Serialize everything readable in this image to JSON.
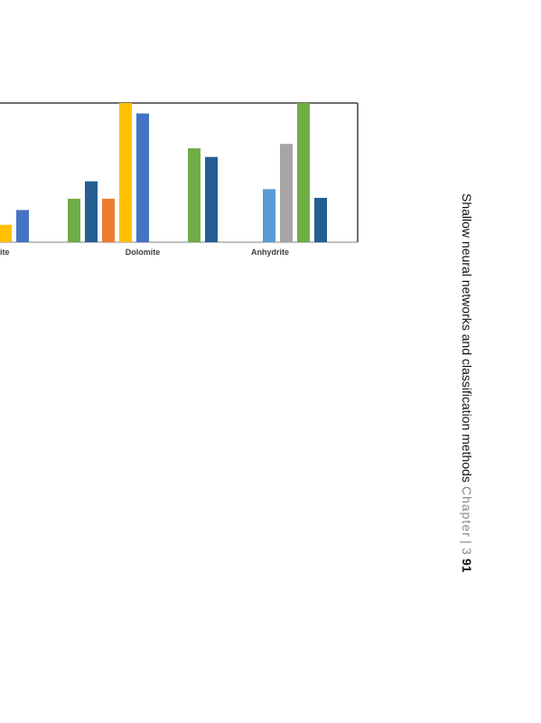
{
  "chart_data": {
    "type": "bar",
    "title": "",
    "xlabel": "",
    "ylabel": "",
    "ylim": [
      0,
      16
    ],
    "grid": false,
    "categories": [
      "ite",
      "Dolomite",
      "Anhydrite"
    ],
    "series": [
      {
        "color": "#ED7D31",
        "values": [
          null,
          5,
          null
        ]
      },
      {
        "color": "#FFC000",
        "values": [
          2,
          16,
          null
        ]
      },
      {
        "color": "#4472C4",
        "values": [
          3.7,
          14.8,
          null
        ]
      },
      {
        "color": "#5B9BD5",
        "values": [
          null,
          null,
          6.1
        ]
      },
      {
        "color": "#A5A5A5",
        "values": [
          null,
          null,
          11.3
        ]
      },
      {
        "color": "#70AD47",
        "values": [
          5,
          10.8,
          16
        ]
      },
      {
        "color": "#255E91",
        "values": [
          7,
          9.8,
          5.1
        ]
      }
    ]
  },
  "running_head": {
    "title": "Shallow neural networks and classification methods",
    "chapter_word": "Chapter",
    "separator": "|",
    "chapter_number": "3",
    "page_number": "91"
  }
}
